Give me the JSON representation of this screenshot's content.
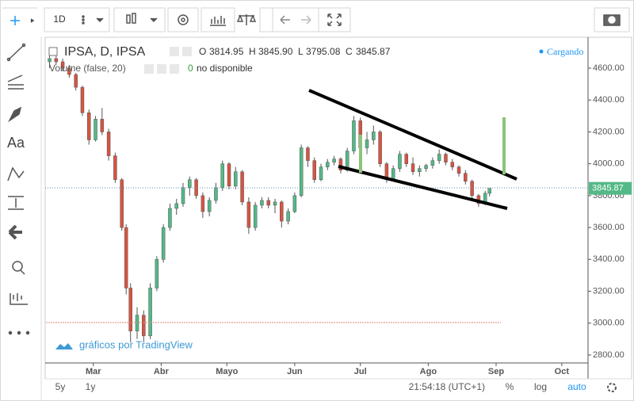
{
  "toolbar": {
    "interval": "1D"
  },
  "drawing_tools": {
    "text_tool": "Aa"
  },
  "header": {
    "symbol": "IPSA, D, IPSA",
    "o_label": "O",
    "open": "3814.95",
    "h_label": "H",
    "high": "3845.90",
    "l_label": "L",
    "low": "3795.08",
    "c_label": "C",
    "close": "3845.87",
    "volume": "Volume (false, 20)",
    "volume_value": "0",
    "volume_status": "no disponible",
    "loading": "Cargando"
  },
  "watermark": "gráficos por TradingView",
  "footer": {
    "range_5y": "5y",
    "range_1y": "1y",
    "clock": "21:54:18 (UTC+1)",
    "percent": "%",
    "log": "log",
    "auto": "auto"
  },
  "chart_data": {
    "type": "candlestick",
    "up_color": "#53b987",
    "down_color": "#d75442",
    "last_price_label": "3845.87",
    "xlim": [
      38,
      286
    ],
    "xticks": [
      {
        "value": 60,
        "label": "Mar"
      },
      {
        "value": 91,
        "label": "Abr"
      },
      {
        "value": 121,
        "label": "Mayo"
      },
      {
        "value": 152,
        "label": "Jun"
      },
      {
        "value": 182,
        "label": "Jul"
      },
      {
        "value": 213,
        "label": "Ago"
      },
      {
        "value": 244,
        "label": "Sep"
      },
      {
        "value": 274,
        "label": "Oct"
      }
    ],
    "ylim": [
      2750,
      4794
    ],
    "yticks": [
      {
        "value": 2800,
        "label": "2800.00"
      },
      {
        "value": 3000,
        "label": "3000.00"
      },
      {
        "value": 3200,
        "label": "3200.00"
      },
      {
        "value": 3400,
        "label": "3400.00"
      },
      {
        "value": 3600,
        "label": "3600.00"
      },
      {
        "value": 3800,
        "label": "3800.00"
      },
      {
        "value": 4000,
        "label": "4000.00"
      },
      {
        "value": 4200,
        "label": "4200.00"
      },
      {
        "value": 4400,
        "label": "4400.00"
      },
      {
        "value": 4600,
        "label": "4600.00"
      }
    ],
    "x": [
      40,
      43,
      46,
      49,
      52,
      55,
      58,
      61,
      64,
      67,
      70,
      73,
      75,
      77,
      80,
      83,
      86,
      89,
      92,
      95,
      98,
      101,
      104,
      107,
      110,
      113,
      116,
      119,
      122,
      125,
      128,
      131,
      134,
      137,
      140,
      143,
      146,
      149,
      152,
      155,
      158,
      161,
      164,
      167,
      170,
      173,
      176,
      179,
      182,
      185,
      188,
      191,
      194,
      197,
      200,
      203,
      206,
      209,
      212,
      215,
      218,
      221,
      224,
      227,
      230,
      233,
      236,
      239,
      241
    ],
    "open": [
      4640,
      4660,
      4640,
      4600,
      4560,
      4480,
      4320,
      4150,
      4280,
      4200,
      4050,
      3900,
      3600,
      3220,
      2950,
      3050,
      2920,
      3220,
      3400,
      3600,
      3720,
      3750,
      3850,
      3900,
      3800,
      3700,
      3770,
      3850,
      4000,
      3860,
      3950,
      3760,
      3600,
      3740,
      3770,
      3740,
      3760,
      3640,
      3700,
      3800,
      4100,
      4020,
      3900,
      3980,
      4010,
      4030,
      3960,
      4080,
      4270,
      4100,
      4150,
      4200,
      4000,
      3900,
      3970,
      4060,
      4000,
      3950,
      3970,
      3990,
      4020,
      4060,
      4010,
      3980,
      3940,
      3890,
      3800,
      3750,
      3814.95
    ],
    "high": [
      4690,
      4680,
      4660,
      4620,
      4570,
      4490,
      4340,
      4300,
      4350,
      4220,
      4070,
      3910,
      3620,
      3250,
      3100,
      3080,
      3250,
      3420,
      3620,
      3750,
      3780,
      3880,
      3920,
      3910,
      3820,
      3790,
      3880,
      4020,
      4010,
      3980,
      3960,
      3790,
      3760,
      3790,
      3790,
      3780,
      3770,
      3720,
      3820,
      4120,
      4110,
      4040,
      4000,
      4030,
      4050,
      4040,
      4100,
      4300,
      4290,
      4200,
      4240,
      4210,
      4010,
      3990,
      4080,
      4070,
      4040,
      3990,
      4000,
      4040,
      4090,
      4070,
      4030,
      3990,
      3960,
      3900,
      3810,
      3830,
      3845.9
    ],
    "low": [
      4600,
      4620,
      4580,
      4540,
      4460,
      4300,
      4120,
      4140,
      4180,
      4020,
      3880,
      3580,
      3180,
      2880,
      2900,
      2880,
      2900,
      3200,
      3380,
      3580,
      3680,
      3730,
      3800,
      3780,
      3660,
      3670,
      3750,
      3830,
      3840,
      3840,
      3740,
      3560,
      3580,
      3720,
      3720,
      3690,
      3600,
      3620,
      3690,
      3790,
      3980,
      3880,
      3890,
      3960,
      3990,
      3940,
      3950,
      4060,
      4080,
      4060,
      4120,
      3980,
      3880,
      3890,
      3950,
      3980,
      3930,
      3920,
      3950,
      3970,
      4000,
      3990,
      3960,
      3920,
      3870,
      3780,
      3730,
      3740,
      3795.08
    ],
    "close": [
      4660,
      4640,
      4600,
      4560,
      4480,
      4320,
      4150,
      4280,
      4200,
      4050,
      3900,
      3600,
      3220,
      2950,
      3050,
      2920,
      3220,
      3400,
      3600,
      3720,
      3750,
      3850,
      3900,
      3800,
      3700,
      3770,
      3850,
      4000,
      3860,
      3950,
      3760,
      3600,
      3740,
      3770,
      3740,
      3760,
      3640,
      3700,
      3800,
      4100,
      4020,
      3900,
      3980,
      4010,
      4030,
      3960,
      4080,
      4270,
      4100,
      4150,
      4200,
      4000,
      3900,
      3970,
      4060,
      4000,
      3950,
      3970,
      3990,
      4020,
      4060,
      4010,
      3980,
      3940,
      3890,
      3800,
      3750,
      3815,
      3845.87
    ]
  }
}
